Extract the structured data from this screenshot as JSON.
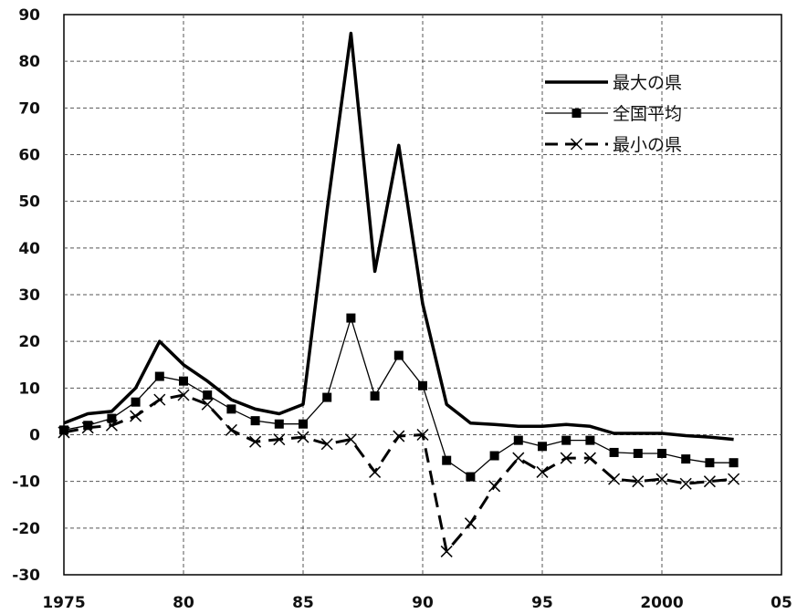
{
  "chart_data": {
    "type": "line",
    "title": "",
    "xlabel": "",
    "ylabel": "",
    "xlim": [
      1975,
      2005
    ],
    "ylim": [
      -30,
      90
    ],
    "x_ticks": [
      "1975",
      "80",
      "85",
      "90",
      "95",
      "2000",
      "05"
    ],
    "y_ticks": [
      "90",
      "80",
      "70",
      "60",
      "50",
      "40",
      "30",
      "20",
      "10",
      "0",
      "-10",
      "-20",
      "-30"
    ],
    "grid": true,
    "legend_position": "top-right",
    "x": [
      1975,
      1976,
      1977,
      1978,
      1979,
      1980,
      1981,
      1982,
      1983,
      1984,
      1985,
      1986,
      1987,
      1988,
      1989,
      1990,
      1991,
      1992,
      1993,
      1994,
      1995,
      1996,
      1997,
      1998,
      1999,
      2000,
      2001,
      2002,
      2003
    ],
    "series": [
      {
        "name": "最大の県",
        "style": "thick-solid",
        "color": "#000000",
        "values": [
          2.5,
          4.5,
          5,
          10,
          20,
          15,
          11.5,
          7.5,
          5.5,
          4.5,
          6.5,
          48,
          86,
          35,
          62,
          28,
          6.5,
          2.5,
          2.2,
          1.8,
          1.8,
          2.2,
          1.8,
          0.3,
          0.3,
          0.3,
          -0.2,
          -0.5,
          -1
        ]
      },
      {
        "name": "全国平均",
        "style": "thin-solid-square",
        "color": "#000000",
        "values": [
          1,
          2,
          3.5,
          7,
          12.5,
          11.5,
          8.5,
          5.5,
          3,
          2.3,
          2.3,
          8,
          25,
          8.3,
          17,
          10.5,
          -5.5,
          -9,
          -4.5,
          -1.2,
          -2.5,
          -1.2,
          -1.2,
          -3.8,
          -4,
          -4,
          -5.2,
          -6,
          -6
        ]
      },
      {
        "name": "最小の県",
        "style": "dashed-x",
        "color": "#000000",
        "values": [
          0.5,
          1.5,
          2,
          4,
          7.5,
          8.5,
          6.5,
          1,
          -1.5,
          -1,
          -0.5,
          -2,
          -1,
          -8,
          -0.3,
          0,
          -25,
          -19,
          -11,
          -5,
          -8,
          -5,
          -5,
          -9.5,
          -10,
          -9.5,
          -10.5,
          -10,
          -9.5
        ]
      }
    ]
  }
}
